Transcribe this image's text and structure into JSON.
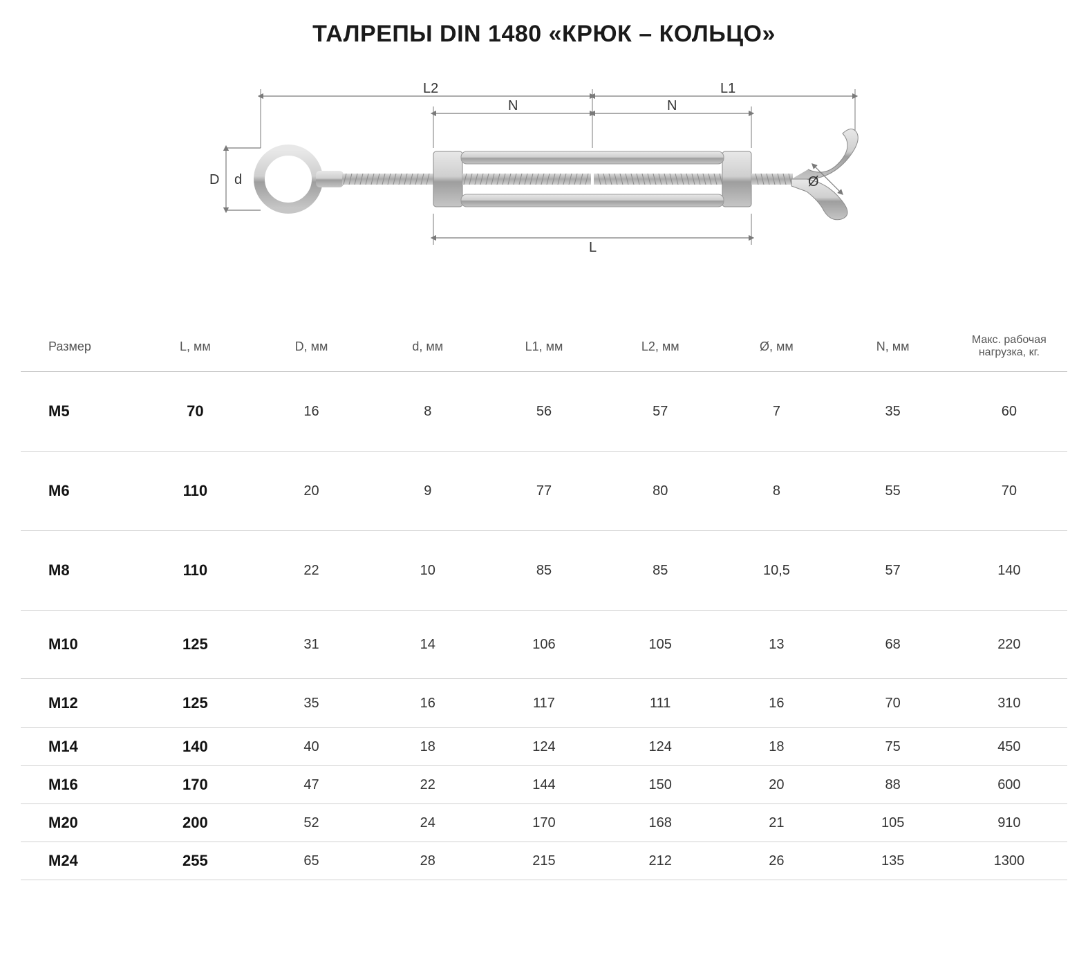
{
  "title": "ТАЛРЕПЫ DIN 1480 «КРЮК – КОЛЬЦО»",
  "diagram": {
    "labels": {
      "L2": "L2",
      "L1": "L1",
      "N": "N",
      "D": "D",
      "d": "d",
      "L": "L",
      "diam": "Ø"
    },
    "colors": {
      "metal_light": "#d8d8d8",
      "metal_mid": "#b8b8b8",
      "metal_dark": "#8e8e8e",
      "dim_line": "#7a7a7a",
      "dim_text": "#333333"
    }
  },
  "table": {
    "columns": [
      "Размер",
      "L, мм",
      "D, мм",
      "d, мм",
      "L1, мм",
      "L2, мм",
      "Ø, мм",
      "N, мм",
      "Макс. рабочая нагрузка, кг."
    ],
    "bold_cols": [
      0,
      1
    ],
    "rows": [
      {
        "h": "xl",
        "cells": [
          "M5",
          "70",
          "16",
          "8",
          "56",
          "57",
          "7",
          "35",
          "60"
        ]
      },
      {
        "h": "xl",
        "cells": [
          "M6",
          "110",
          "20",
          "9",
          "77",
          "80",
          "8",
          "55",
          "70"
        ]
      },
      {
        "h": "xl",
        "cells": [
          "M8",
          "110",
          "22",
          "10",
          "85",
          "85",
          "10,5",
          "57",
          "140"
        ]
      },
      {
        "h": "l",
        "cells": [
          "M10",
          "125",
          "31",
          "14",
          "106",
          "105",
          "13",
          "68",
          "220"
        ]
      },
      {
        "h": "m",
        "cells": [
          "M12",
          "125",
          "35",
          "16",
          "117",
          "111",
          "16",
          "70",
          "310"
        ]
      },
      {
        "h": "s",
        "cells": [
          "M14",
          "140",
          "40",
          "18",
          "124",
          "124",
          "18",
          "75",
          "450"
        ]
      },
      {
        "h": "s",
        "cells": [
          "M16",
          "170",
          "47",
          "22",
          "144",
          "150",
          "20",
          "88",
          "600"
        ]
      },
      {
        "h": "s",
        "cells": [
          "M20",
          "200",
          "52",
          "24",
          "170",
          "168",
          "21",
          "105",
          "910"
        ]
      },
      {
        "h": "s",
        "cells": [
          "M24",
          "255",
          "65",
          "28",
          "215",
          "212",
          "26",
          "135",
          "1300"
        ]
      }
    ]
  }
}
